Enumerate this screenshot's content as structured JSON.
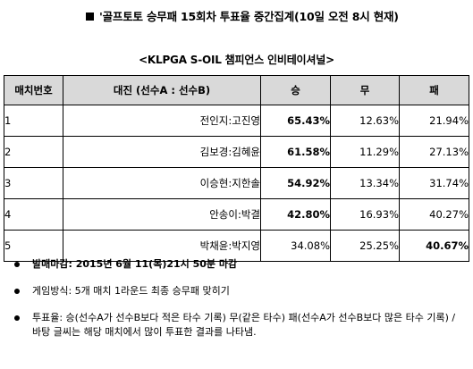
{
  "heading": "'골프토토 승무패 15회차 투표율 중간집계(10일 오전 8시 현재)",
  "subtitle": "<KLPGA S-OIL 챔피언스 인비테이셔널>",
  "table": {
    "headers": [
      "매치번호",
      "대진 (선수A  :  선수B)",
      "승",
      "무",
      "패"
    ],
    "rows": [
      {
        "num": "1",
        "match": "전인지:고진영",
        "win": "65.43%",
        "draw": "12.63%",
        "loss": "21.94%",
        "bold": "win"
      },
      {
        "num": "2",
        "match": "김보경:김혜윤",
        "win": "61.58%",
        "draw": "11.29%",
        "loss": "27.13%",
        "bold": "win"
      },
      {
        "num": "3",
        "match": "이승현:지한솔",
        "win": "54.92%",
        "draw": "13.34%",
        "loss": "31.74%",
        "bold": "win"
      },
      {
        "num": "4",
        "match": "안송이:박결",
        "win": "42.80%",
        "draw": "16.93%",
        "loss": "40.27%",
        "bold": "win"
      },
      {
        "num": "5",
        "match": "박채윤:박지영",
        "win": "34.08%",
        "draw": "25.25%",
        "loss": "40.67%",
        "bold": "loss"
      }
    ]
  },
  "notes": [
    "발매마감: 2015년 6월 11(목)21시 50분 마감",
    "게임방식: 5개 매치 1라운드 최종 승무패 맞히기",
    "투표율: 승(선수A가 선수B보다 적은 타수 기록) 무(같은 타수) 패(선수A가 선수B보다 많은 타수 기록) / 바탕 글씨는 해당 매치에서 많이 투표한 결과를 나타냄."
  ]
}
